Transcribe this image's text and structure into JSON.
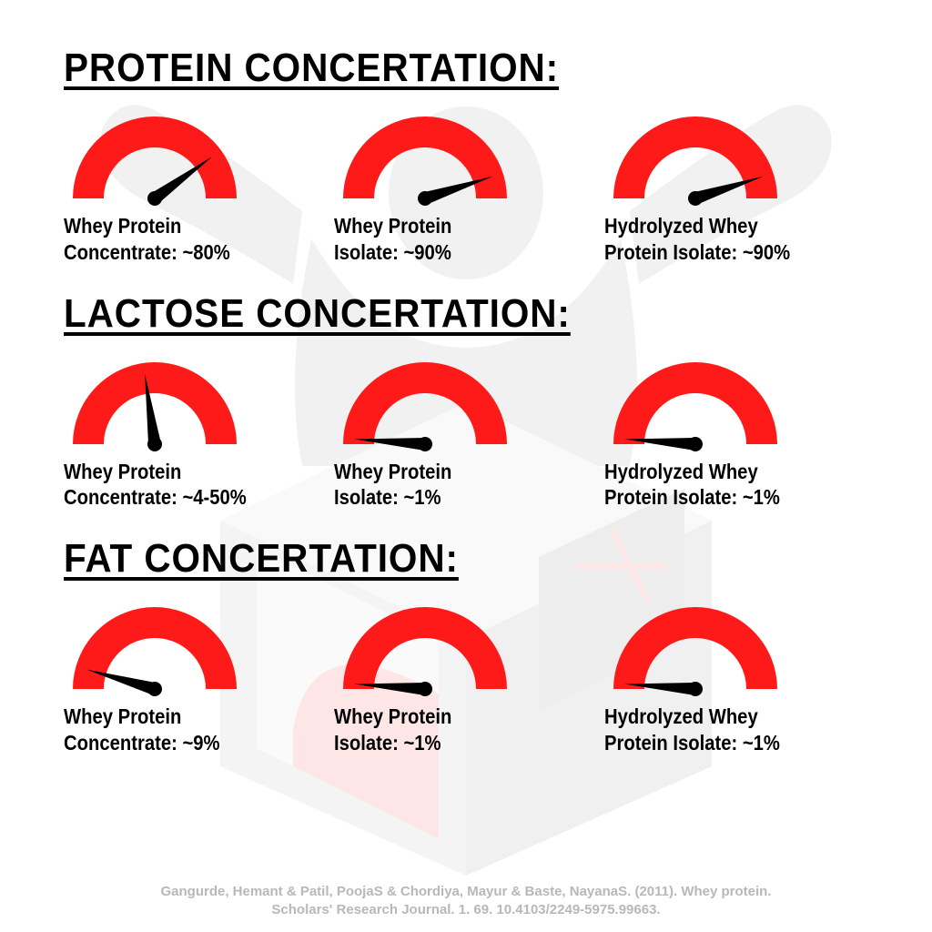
{
  "colors": {
    "gauge_arc": "#ff1a1a",
    "gauge_needle": "#000000",
    "text": "#000000",
    "citation": "#b8b8b8",
    "background": "#ffffff"
  },
  "gauge_style": {
    "arc_stroke_width": 34,
    "needle_width": 14,
    "needle_length": 78
  },
  "sections": [
    {
      "title": "PROTEIN CONCERTATION:",
      "items": [
        {
          "line1": "Whey Protein",
          "line2": "Concentrate: ~80%",
          "angle": 144
        },
        {
          "line1": "Whey Protein",
          "line2": "Isolate: ~90%",
          "angle": 162
        },
        {
          "line1": "Hydrolyzed Whey",
          "line2": "Protein Isolate: ~90%",
          "angle": 162
        }
      ]
    },
    {
      "title": "LACTOSE CONCERTATION:",
      "items": [
        {
          "line1": "Whey Protein",
          "line2": "Concentrate: ~4-50%",
          "angle": 82
        },
        {
          "line1": "Whey Protein",
          "line2": "Isolate: ~1%",
          "angle": 4
        },
        {
          "line1": "Hydrolyzed Whey",
          "line2": "Protein Isolate: ~1%",
          "angle": 4
        }
      ]
    },
    {
      "title": "FAT CONCERTATION:",
      "items": [
        {
          "line1": "Whey Protein",
          "line2": "Concentrate: ~9%",
          "angle": 16
        },
        {
          "line1": "Whey Protein",
          "line2": "Isolate: ~1%",
          "angle": 4
        },
        {
          "line1": "Hydrolyzed Whey",
          "line2": "Protein Isolate: ~1%",
          "angle": 4
        }
      ]
    }
  ],
  "citation": "Gangurde, Hemant & Patil, PoojaS & Chordiya, Mayur & Baste, NayanaS. (2011). Whey protein. Scholars' Research Journal. 1. 69. 10.4103/2249-5975.99663."
}
